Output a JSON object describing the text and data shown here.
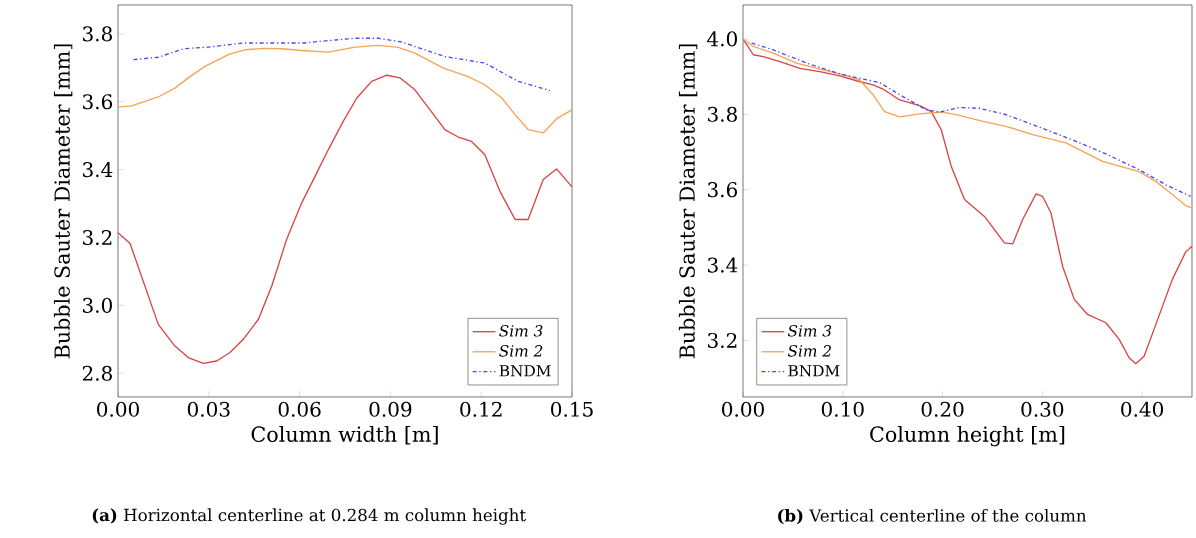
{
  "chart_data": [
    {
      "type": "line",
      "xlabel": "Column width [m]",
      "ylabel": "Bubble Sauter Diameter [mm]",
      "xlim": [
        0,
        0.15
      ],
      "ylim": [
        2.73,
        3.885
      ],
      "xticks": [
        {
          "value": 0,
          "label": "0.00"
        },
        0.03,
        0.06,
        0.09,
        0.12,
        0.15
      ],
      "yticks": [
        2.8,
        {
          "value": 3.0,
          "label": "3.0"
        },
        3.2,
        3.4,
        3.6,
        3.8
      ],
      "grid": false,
      "legend": "bottom right",
      "annotations": [
        "**(a)** Horizontal centerline at 0.284 m column height"
      ],
      "series": [
        {
          "name": "*Sim 3*",
          "color": "#d94545",
          "line_style": "solid",
          "x": [
            0,
            0.004,
            0.0133,
            0.0188,
            0.0232,
            0.0282,
            0.0326,
            0.037,
            0.0414,
            0.0464,
            0.0508,
            0.0557,
            0.0607,
            0.0651,
            0.0695,
            0.0744,
            0.0789,
            0.0838,
            0.0888,
            0.0932,
            0.0981,
            0.1031,
            0.108,
            0.1124,
            0.1168,
            0.1212,
            0.1262,
            0.1312,
            0.1355,
            0.1405,
            0.1449,
            0.15
          ],
          "values": [
            3.214,
            3.182,
            2.944,
            2.88,
            2.846,
            2.829,
            2.836,
            2.861,
            2.9,
            2.959,
            3.057,
            3.194,
            3.302,
            3.38,
            3.459,
            3.542,
            3.611,
            3.66,
            3.678,
            3.67,
            3.635,
            3.576,
            3.518,
            3.496,
            3.483,
            3.444,
            3.336,
            3.253,
            3.253,
            3.371,
            3.402,
            3.349
          ]
        },
        {
          "name": "*Sim 2*",
          "color": "#f5a455",
          "line_style": "solid",
          "x": [
            0,
            0.0045,
            0.0133,
            0.0188,
            0.0238,
            0.0287,
            0.037,
            0.042,
            0.048,
            0.0541,
            0.0607,
            0.0695,
            0.0783,
            0.086,
            0.0926,
            0.0981,
            0.1075,
            0.1157,
            0.1212,
            0.1268,
            0.1312,
            0.1355,
            0.1405,
            0.1449,
            0.15
          ],
          "values": [
            3.584,
            3.588,
            3.614,
            3.64,
            3.674,
            3.704,
            3.741,
            3.753,
            3.757,
            3.756,
            3.751,
            3.746,
            3.761,
            3.766,
            3.76,
            3.743,
            3.699,
            3.674,
            3.65,
            3.611,
            3.562,
            3.518,
            3.508,
            3.55,
            3.576
          ]
        },
        {
          "name": "BNDM",
          "color": "#4848f5",
          "line_style": "dashdot",
          "x": [
            0.0051,
            0.0133,
            0.0216,
            0.0298,
            0.0414,
            0.0497,
            0.0612,
            0.0695,
            0.0783,
            0.086,
            0.0937,
            0.108,
            0.1212,
            0.1322,
            0.1427
          ],
          "values": [
            3.724,
            3.731,
            3.756,
            3.761,
            3.773,
            3.773,
            3.773,
            3.78,
            3.787,
            3.787,
            3.776,
            3.733,
            3.714,
            3.66,
            3.633
          ]
        }
      ]
    },
    {
      "type": "line",
      "xlabel": "Column height [m]",
      "ylabel": "Bubble Sauter Diameter [mm]",
      "xlim": [
        0,
        0.45
      ],
      "ylim": [
        3.05,
        4.09
      ],
      "xticks": [
        {
          "value": 0,
          "label": "0.00"
        },
        {
          "value": 0.1,
          "label": "0.10"
        },
        {
          "value": 0.2,
          "label": "0.20"
        },
        {
          "value": 0.3,
          "label": "0.30"
        },
        {
          "value": 0.4,
          "label": "0.40"
        }
      ],
      "yticks": [
        3.2,
        3.4,
        3.6,
        3.8,
        {
          "value": 4.0,
          "label": "4.0"
        }
      ],
      "grid": false,
      "legend": "bottom left",
      "annotations": [
        "**(b)** Vertical centerline of the column"
      ],
      "series": [
        {
          "name": "*Sim 3*",
          "color": "#d94545",
          "line_style": "solid",
          "x": [
            0,
            0.0103,
            0.0203,
            0.037,
            0.057,
            0.077,
            0.097,
            0.1137,
            0.1303,
            0.1403,
            0.157,
            0.177,
            0.1887,
            0.1987,
            0.2087,
            0.222,
            0.242,
            0.262,
            0.2703,
            0.2803,
            0.2937,
            0.3003,
            0.3087,
            0.3203,
            0.332,
            0.3453,
            0.3637,
            0.377,
            0.387,
            0.3937,
            0.402,
            0.4137,
            0.4303,
            0.4437,
            0.45
          ],
          "values": [
            4.0,
            3.958,
            3.953,
            3.94,
            3.922,
            3.913,
            3.902,
            3.889,
            3.878,
            3.867,
            3.838,
            3.823,
            3.807,
            3.759,
            3.662,
            3.574,
            3.529,
            3.459,
            3.456,
            3.521,
            3.589,
            3.582,
            3.538,
            3.397,
            3.309,
            3.269,
            3.247,
            3.203,
            3.154,
            3.138,
            3.158,
            3.242,
            3.362,
            3.435,
            3.45
          ]
        },
        {
          "name": "*Sim 2*",
          "color": "#f5a455",
          "line_style": "solid",
          "x": [
            0,
            0.0103,
            0.0303,
            0.0537,
            0.0803,
            0.1003,
            0.117,
            0.1303,
            0.142,
            0.157,
            0.177,
            0.2003,
            0.217,
            0.2403,
            0.2637,
            0.2903,
            0.3237,
            0.3603,
            0.397,
            0.4137,
            0.4303,
            0.4437,
            0.45
          ],
          "values": [
            4.0,
            3.98,
            3.962,
            3.936,
            3.918,
            3.905,
            3.891,
            3.852,
            3.807,
            3.793,
            3.801,
            3.806,
            3.797,
            3.781,
            3.768,
            3.746,
            3.724,
            3.675,
            3.648,
            3.622,
            3.587,
            3.558,
            3.552
          ]
        },
        {
          "name": "BNDM",
          "color": "#4848f5",
          "line_style": "dashdot",
          "x": [
            0.0087,
            0.0303,
            0.0637,
            0.097,
            0.137,
            0.1603,
            0.1837,
            0.197,
            0.217,
            0.237,
            0.2637,
            0.297,
            0.3303,
            0.3637,
            0.397,
            0.4237,
            0.4487
          ],
          "values": [
            3.989,
            3.971,
            3.936,
            3.907,
            3.884,
            3.847,
            3.812,
            3.806,
            3.818,
            3.816,
            3.799,
            3.766,
            3.732,
            3.695,
            3.653,
            3.613,
            3.582
          ]
        }
      ]
    }
  ]
}
